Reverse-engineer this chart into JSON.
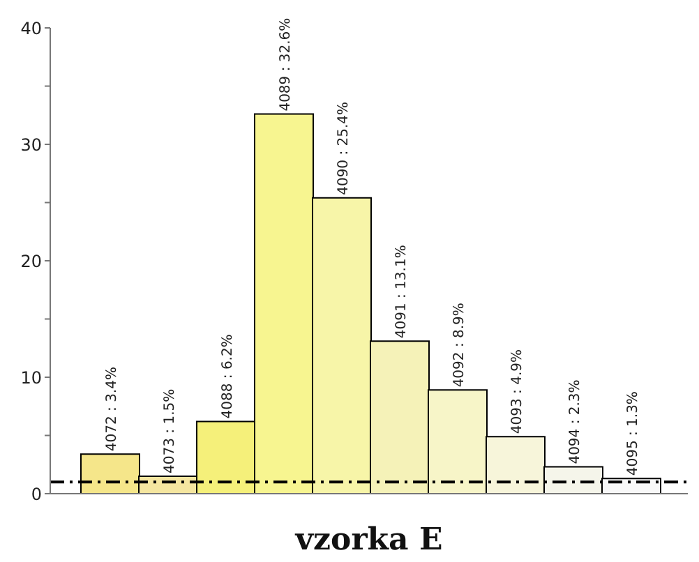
{
  "chart_data": {
    "type": "bar",
    "xlabel": "vzorka E",
    "categories": [
      null,
      null,
      null,
      null,
      null,
      null,
      null,
      null,
      null,
      null
    ],
    "values": [
      3.4,
      1.5,
      6.2,
      32.6,
      25.4,
      13.1,
      8.9,
      4.9,
      2.3,
      1.3
    ],
    "colors": [
      "#f5e68a",
      "#f5e6a0",
      "#f5f07a",
      "#f7f590",
      "#f7f5a8",
      "#f5f2b8",
      "#f7f5c8",
      "#f7f5da",
      "#f5f5ea",
      "#f8f8f8"
    ],
    "value_labels": [
      "4072 : 3.4%",
      "4073 : 1.5%",
      "4088 : 6.2%",
      "4089 : 32.6%",
      "4090 : 25.4%",
      "4091 : 13.1%",
      "4092 : 8.9%",
      "4093 : 4.9%",
      "4094 : 2.3%",
      "4095 : 1.3%"
    ],
    "ylim": [
      0,
      40
    ],
    "yticks": [
      0,
      {
        "value": 5,
        "label": null
      },
      10,
      {
        "value": 15,
        "label": null
      },
      20,
      {
        "value": 25,
        "label": null
      },
      30,
      {
        "value": 35,
        "label": null
      },
      40
    ],
    "ref_lines": [
      {
        "axis": "y",
        "value": 1,
        "color": "#000000",
        "line_style": "dashed"
      }
    ],
    "grid": false,
    "legend": false
  }
}
